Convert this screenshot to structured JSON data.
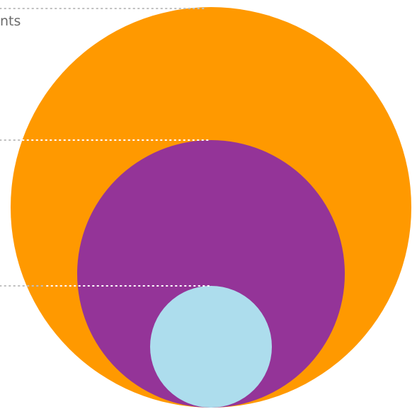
{
  "labels": {
    "outer_fragment": "nts"
  },
  "colors": {
    "outer_circle": "#FF9900",
    "middle_circle": "#943498",
    "inner_circle": "#ADDDED",
    "leader_line_gray": "#bfbfbf",
    "leader_line_white": "#ffffff",
    "label_text": "#6b6b6b"
  }
}
